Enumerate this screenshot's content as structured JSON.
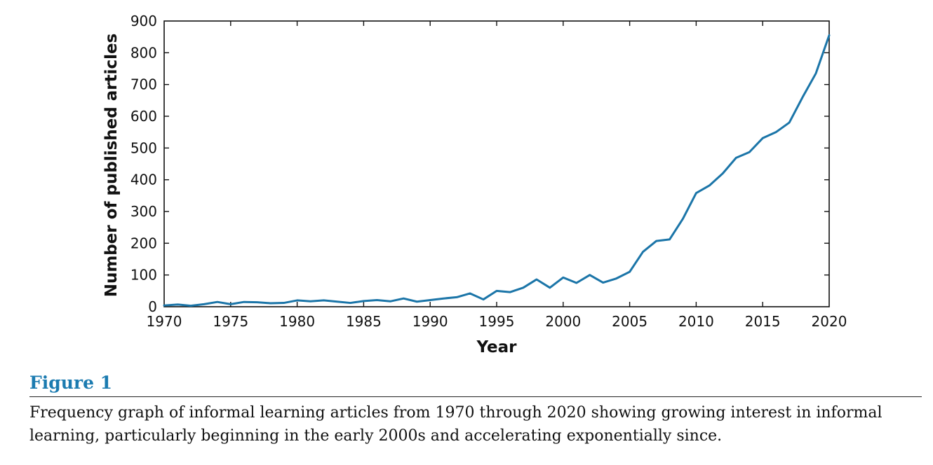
{
  "chart_data": {
    "type": "line",
    "xlabel": "Year",
    "ylabel": "Number of published articles",
    "xlim": [
      1970,
      2020
    ],
    "ylim": [
      0,
      900
    ],
    "x_ticks": [
      1970,
      1975,
      1980,
      1985,
      1990,
      1995,
      2000,
      2005,
      2010,
      2015,
      2020
    ],
    "y_ticks": [
      0,
      100,
      200,
      300,
      400,
      500,
      600,
      700,
      800,
      900
    ],
    "grid": false,
    "line_color": "#1b75a8",
    "series": [
      {
        "x": [
          1970,
          1971,
          1972,
          1973,
          1974,
          1975,
          1976,
          1977,
          1978,
          1979,
          1980,
          1981,
          1982,
          1983,
          1984,
          1985,
          1986,
          1987,
          1988,
          1989,
          1990,
          1991,
          1992,
          1993,
          1994,
          1995,
          1996,
          1997,
          1998,
          1999,
          2000,
          2001,
          2002,
          2003,
          2004,
          2005,
          2006,
          2007,
          2008,
          2009,
          2010,
          2011,
          2012,
          2013,
          2014,
          2015,
          2016,
          2017,
          2018,
          2019,
          2020
        ],
        "values": [
          4,
          7,
          3,
          8,
          15,
          8,
          15,
          14,
          11,
          12,
          20,
          17,
          20,
          16,
          12,
          18,
          21,
          17,
          26,
          16,
          21,
          26,
          30,
          42,
          23,
          50,
          46,
          60,
          86,
          60,
          92,
          75,
          100,
          76,
          89,
          110,
          173,
          207,
          212,
          277,
          358,
          382,
          420,
          469,
          487,
          531,
          550,
          580,
          660,
          735,
          855
        ]
      }
    ]
  },
  "caption": {
    "label": "Figure 1",
    "text": "Frequency graph of informal learning articles from 1970 through 2020 showing growing interest in informal learning, particularly beginning in the early 2000s and accelerating exponentially since."
  }
}
